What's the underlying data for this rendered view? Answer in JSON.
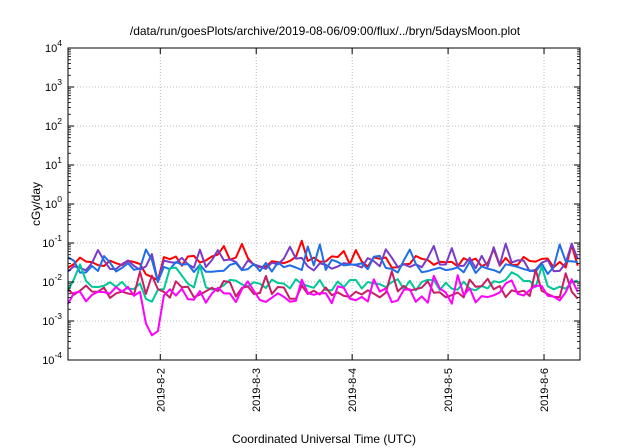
{
  "chart_data": {
    "type": "line",
    "title": "/data/run/goesPlots/archive/2019-08-06/09:00/flux/../bryn/5daysMoon.plot",
    "xlabel": "Coordinated Universal Time (UTC)",
    "ylabel": "cGy/day",
    "y_scale": "log",
    "ylim": [
      0.0001,
      10000
    ],
    "y_ticks": [
      {
        "value": 0.0001,
        "base": "10",
        "exp": "-4"
      },
      {
        "value": 0.001,
        "base": "10",
        "exp": "-3"
      },
      {
        "value": 0.01,
        "base": "10",
        "exp": "-2"
      },
      {
        "value": 0.1,
        "base": "10",
        "exp": "-1"
      },
      {
        "value": 1,
        "base": "10",
        "exp": "0"
      },
      {
        "value": 10,
        "base": "10",
        "exp": "1"
      },
      {
        "value": 100,
        "base": "10",
        "exp": "2"
      },
      {
        "value": 1000,
        "base": "10",
        "exp": "3"
      },
      {
        "value": 10000,
        "base": "10",
        "exp": "4"
      }
    ],
    "xlim": [
      "2019-08-01 00:55",
      "2019-08-06 09:00"
    ],
    "x_ticks": [
      {
        "value": "2019-08-02",
        "label": "2019-8-2"
      },
      {
        "value": "2019-08-03",
        "label": "2019-8-3"
      },
      {
        "value": "2019-08-04",
        "label": "2019-8-4"
      },
      {
        "value": "2019-08-05",
        "label": "2019-8-5"
      },
      {
        "value": "2019-08-06",
        "label": "2019-8-6"
      }
    ],
    "grid": true,
    "series": [
      {
        "color": "#ff0000",
        "base": 0.033,
        "spread": 0.3,
        "dip": 0.012,
        "seed": 11
      },
      {
        "color": "#7a3cc8",
        "base": 0.028,
        "spread": 0.35,
        "dip": 0.01,
        "seed": 23
      },
      {
        "color": "#1e6ee8",
        "base": 0.024,
        "spread": 0.35,
        "dip": 0.008,
        "seed": 37
      },
      {
        "color": "#00c896",
        "base": 0.0085,
        "spread": 0.3,
        "dip": 0.004,
        "seed": 41
      },
      {
        "color": "#c81e64",
        "base": 0.0055,
        "spread": 0.35,
        "dip": 0.0012,
        "seed": 53
      },
      {
        "color": "#ff00ff",
        "base": 0.0046,
        "spread": 0.45,
        "dip": 0.00055,
        "seed": 67
      }
    ]
  }
}
